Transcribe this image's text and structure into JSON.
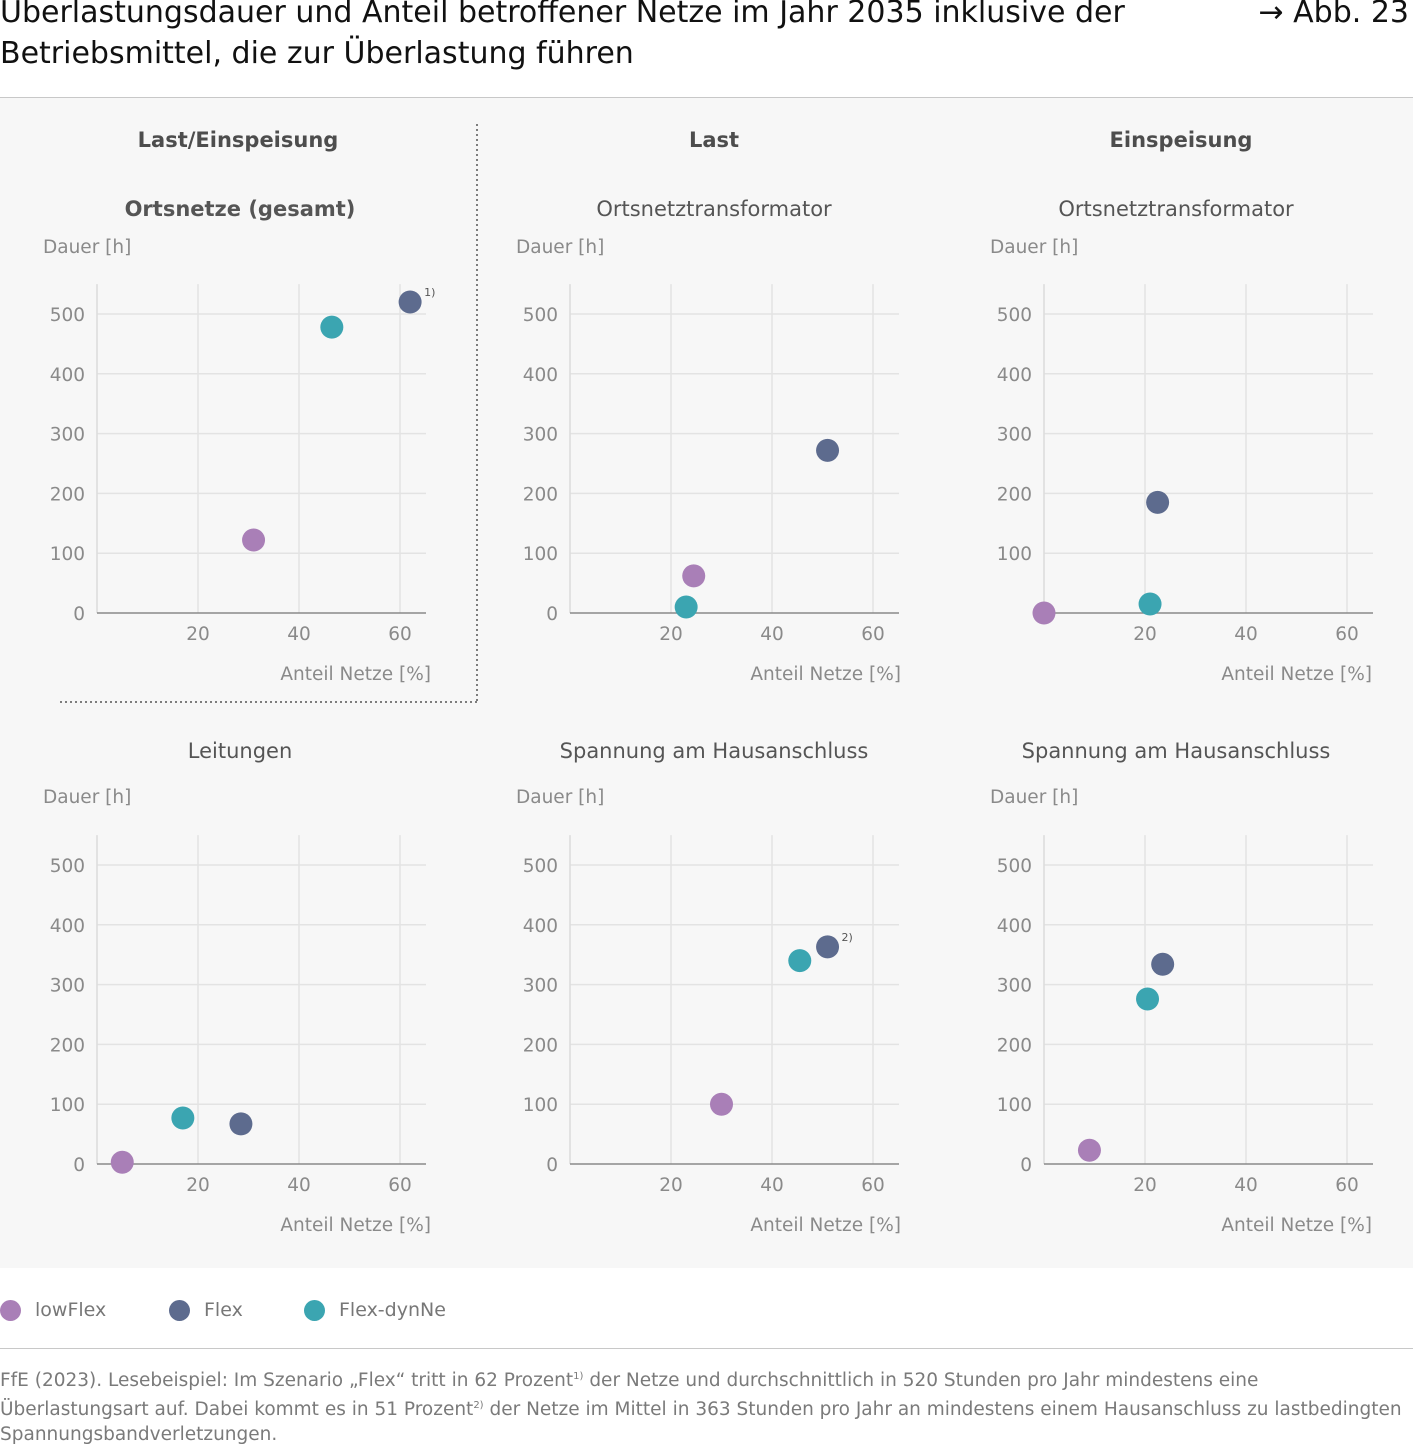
{
  "header": {
    "title": "Überlastungsdauer und Anteil betroffener Netze im Jahr 2035 inklusive der Betriebsmittel, die zur Überlastung führen",
    "figure_ref": "→ Abb. 23"
  },
  "sections": {
    "left": "Last/Einspeisung",
    "middle": "Last",
    "right": "Einspeisung"
  },
  "colors": {
    "lowFlex": "#a97fb7",
    "Flex": "#5d6b8e",
    "Flex-dynNe": "#3ba5b1"
  },
  "legend": [
    {
      "name": "lowFlex",
      "color": "#a97fb7"
    },
    {
      "name": "Flex",
      "color": "#5d6b8e"
    },
    {
      "name": "Flex-dynNe",
      "color": "#3ba5b1"
    }
  ],
  "footnote": {
    "line1_a": "FfE (2023). Lesebeispiel:  Im Szenario „Flex“ tritt in 62 Prozent",
    "sup1": "1)",
    "line1_b": " der Netze und durchschnittlich in 520 Stunden pro Jahr mindestens eine Überlastungsart auf. Dabei kommt es in 51 Prozent",
    "sup2": "2)",
    "line1_c": " der Netze im Mittel in 363 Stunden pro Jahr an mindestens einem Hausanschluss zu lastbedingten Spannungsbandverletzungen."
  },
  "chart_data": [
    {
      "type": "scatter",
      "title": "Ortsnetze (gesamt)",
      "title_bold": true,
      "xlabel": "Anteil Netze [%]",
      "ylabel": "Dauer [h]",
      "xlim": [
        0,
        65
      ],
      "ylim": [
        0,
        550
      ],
      "xticks": [
        20,
        40,
        60
      ],
      "yticks": [
        0,
        100,
        200,
        300,
        400,
        500
      ],
      "series": [
        {
          "name": "lowFlex",
          "x": 31,
          "y": 122
        },
        {
          "name": "Flex-dynNe",
          "x": 46.5,
          "y": 478
        },
        {
          "name": "Flex",
          "x": 62,
          "y": 520,
          "annotation": "1)"
        }
      ]
    },
    {
      "type": "scatter",
      "title": "Ortsnetztransformator",
      "xlabel": "Anteil Netze [%]",
      "ylabel": "Dauer [h]",
      "xlim": [
        0,
        65
      ],
      "ylim": [
        0,
        550
      ],
      "xticks": [
        20,
        40,
        60
      ],
      "yticks": [
        0,
        100,
        200,
        300,
        400,
        500
      ],
      "series": [
        {
          "name": "lowFlex",
          "x": 24.5,
          "y": 62
        },
        {
          "name": "Flex-dynNe",
          "x": 23,
          "y": 10
        },
        {
          "name": "Flex",
          "x": 51,
          "y": 272
        }
      ]
    },
    {
      "type": "scatter",
      "title": "Ortsnetztransformator",
      "xlabel": "Anteil Netze [%]",
      "ylabel": "Dauer [h]",
      "xlim": [
        0,
        65
      ],
      "ylim": [
        0,
        550
      ],
      "xticks": [
        20,
        40,
        60
      ],
      "yticks": [
        100,
        200,
        300,
        400,
        500
      ],
      "series": [
        {
          "name": "lowFlex",
          "x": 0,
          "y": 0
        },
        {
          "name": "Flex-dynNe",
          "x": 21,
          "y": 15
        },
        {
          "name": "Flex",
          "x": 22.5,
          "y": 185
        }
      ]
    },
    {
      "type": "scatter",
      "title": "Leitungen",
      "xlabel": "Anteil Netze [%]",
      "ylabel": "Dauer [h]",
      "xlim": [
        0,
        65
      ],
      "ylim": [
        0,
        550
      ],
      "xticks": [
        20,
        40,
        60
      ],
      "yticks": [
        0,
        100,
        200,
        300,
        400,
        500
      ],
      "series": [
        {
          "name": "lowFlex",
          "x": 5,
          "y": 3
        },
        {
          "name": "Flex-dynNe",
          "x": 17,
          "y": 77
        },
        {
          "name": "Flex",
          "x": 28.5,
          "y": 67
        }
      ]
    },
    {
      "type": "scatter",
      "title": "Spannung am Hausanschluss",
      "xlabel": "Anteil Netze [%]",
      "ylabel": "Dauer [h]",
      "xlim": [
        0,
        65
      ],
      "ylim": [
        0,
        550
      ],
      "xticks": [
        20,
        40,
        60
      ],
      "yticks": [
        0,
        100,
        200,
        300,
        400,
        500
      ],
      "series": [
        {
          "name": "lowFlex",
          "x": 30,
          "y": 100
        },
        {
          "name": "Flex-dynNe",
          "x": 45.5,
          "y": 340
        },
        {
          "name": "Flex",
          "x": 51,
          "y": 363,
          "annotation": "2)"
        }
      ]
    },
    {
      "type": "scatter",
      "title": "Spannung am Hausanschluss",
      "xlabel": "Anteil Netze [%]",
      "ylabel": "Dauer [h]",
      "xlim": [
        0,
        65
      ],
      "ylim": [
        0,
        550
      ],
      "xticks": [
        20,
        40,
        60
      ],
      "yticks": [
        0,
        100,
        200,
        300,
        400,
        500
      ],
      "series": [
        {
          "name": "lowFlex",
          "x": 9,
          "y": 23
        },
        {
          "name": "Flex-dynNe",
          "x": 20.5,
          "y": 276
        },
        {
          "name": "Flex",
          "x": 23.5,
          "y": 334
        }
      ]
    }
  ]
}
